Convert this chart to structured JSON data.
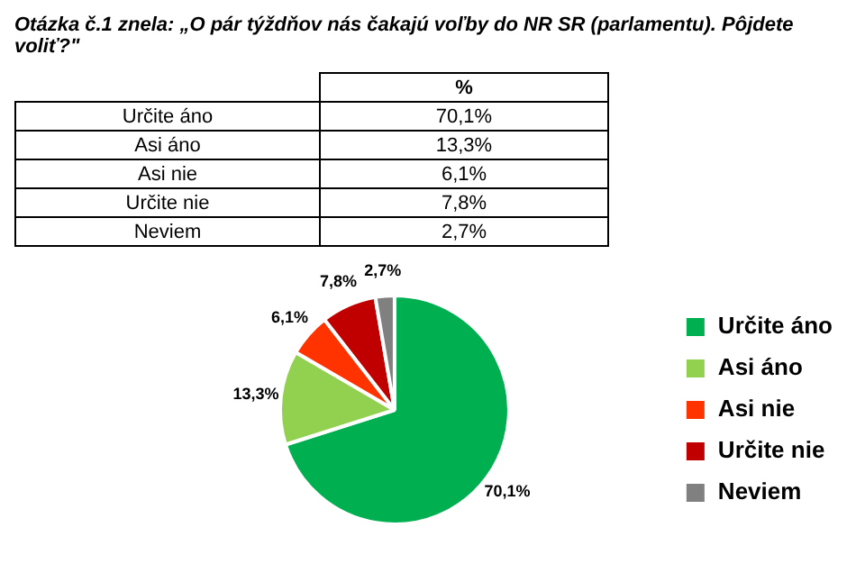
{
  "chart_data": {
    "type": "pie",
    "title": "Otázka č.1 znela: „O pár týždňov nás čakajú  voľby do NR SR (parlamentu). Pôjdete voliť?\"",
    "annotations": [
      "%"
    ],
    "categories": [
      "Určite áno",
      "Asi áno",
      "Asi nie",
      "Určite nie",
      "Neviem"
    ],
    "values": [
      70.1,
      13.3,
      6.1,
      7.8,
      2.7
    ],
    "value_labels": [
      "70,1%",
      "13,3%",
      "6,1%",
      "7,8%",
      "2,7%"
    ],
    "colors": [
      "#00b050",
      "#92d050",
      "#ff3300",
      "#c00000",
      "#808080"
    ],
    "legend": "right"
  }
}
